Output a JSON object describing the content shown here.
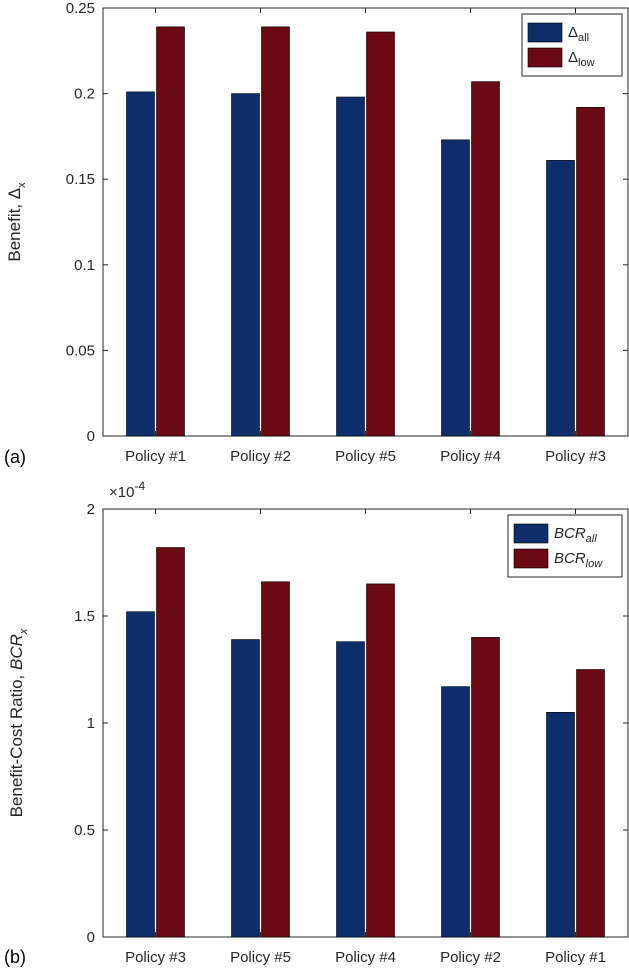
{
  "colors": {
    "series_all": "#0d2e6b",
    "series_low": "#6b0a14",
    "axis": "#262626"
  },
  "chart_data": [
    {
      "type": "bar",
      "panel_label": "(a)",
      "categories": [
        "Policy #1",
        "Policy #2",
        "Policy #5",
        "Policy #4",
        "Policy #3"
      ],
      "series": [
        {
          "name": "Δall",
          "base": "Δ",
          "sub": "all",
          "values": [
            0.201,
            0.2,
            0.198,
            0.173,
            0.161
          ]
        },
        {
          "name": "Δlow",
          "base": "Δ",
          "sub": "low",
          "values": [
            0.239,
            0.239,
            0.236,
            0.207,
            0.192
          ]
        }
      ],
      "ylabel": "Benefit, Δx",
      "ylabel_text": "Benefit, Δ",
      "ylabel_sub": "x",
      "ylim": [
        0,
        0.25
      ],
      "yticks": [
        0,
        0.05,
        0.1,
        0.15,
        0.2,
        0.25
      ],
      "ytick_labels": [
        "0",
        "0.05",
        "0.1",
        "0.15",
        "0.2",
        "0.25"
      ],
      "legend_position": "top-right"
    },
    {
      "type": "bar",
      "panel_label": "(b)",
      "categories": [
        "Policy #3",
        "Policy #5",
        "Policy #4",
        "Policy #2",
        "Policy #1"
      ],
      "series": [
        {
          "name": "BCRall",
          "base": "BCR",
          "sub": "all",
          "values": [
            1.52,
            1.39,
            1.38,
            1.17,
            1.05
          ]
        },
        {
          "name": "BCRlow",
          "base": "BCR",
          "sub": "low",
          "values": [
            1.82,
            1.66,
            1.65,
            1.4,
            1.25
          ]
        }
      ],
      "ylabel": "Benefit-Cost Ratio, BCRx",
      "ylabel_text": "Benefit-Cost Ratio, ",
      "ylabel_ital": "BCR",
      "ylabel_sub": "x",
      "ylim": [
        0,
        2
      ],
      "yticks": [
        0,
        0.5,
        1,
        1.5,
        2
      ],
      "ytick_labels": [
        "0",
        "0.5",
        "1",
        "1.5",
        "2"
      ],
      "scale_label": "×10-4",
      "scale_base": "×10",
      "scale_exp": "-4",
      "legend_position": "top-right"
    }
  ]
}
